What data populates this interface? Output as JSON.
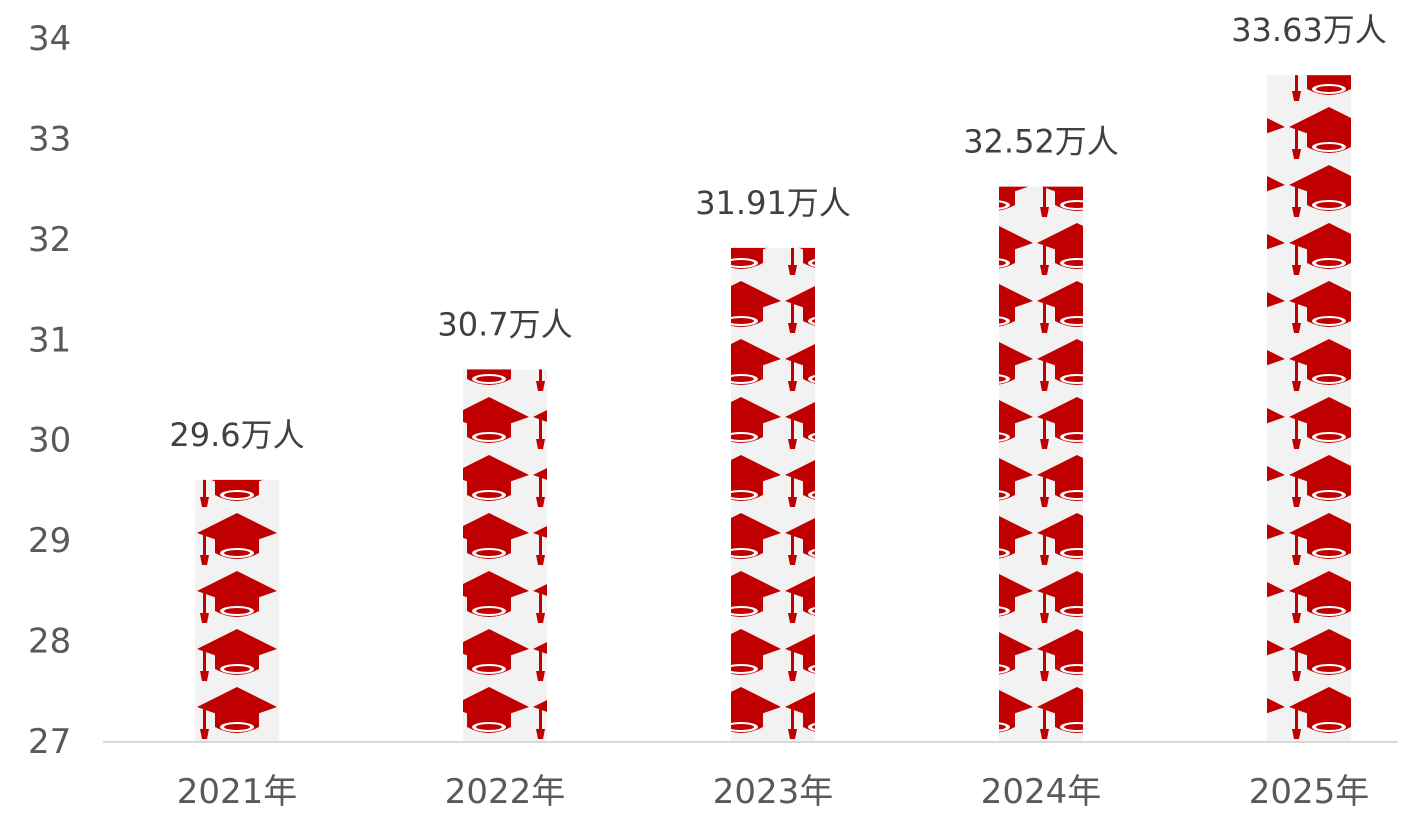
{
  "chart_data": {
    "type": "bar",
    "title": "",
    "xlabel": "",
    "ylabel": "",
    "categories": [
      "2021年",
      "2022年",
      "2023年",
      "2024年",
      "2025年"
    ],
    "values": [
      29.6,
      30.7,
      31.91,
      32.52,
      33.63
    ],
    "data_labels": [
      "29.6万人",
      "30.7万人",
      "31.91万人",
      "32.52万人",
      "33.63万人"
    ],
    "ylim": [
      27,
      34
    ],
    "yticks": [
      "27",
      "28",
      "29",
      "30",
      "31",
      "32",
      "33",
      "34"
    ],
    "grid": false,
    "legend": "none",
    "bar_fill": "graduation-cap-icon pattern",
    "colors": {
      "icon": "#c00000",
      "bar_background": "#f2f2f2",
      "axis": "#d9d9d9",
      "tick_text": "#595959",
      "label_text": "#404040"
    }
  }
}
